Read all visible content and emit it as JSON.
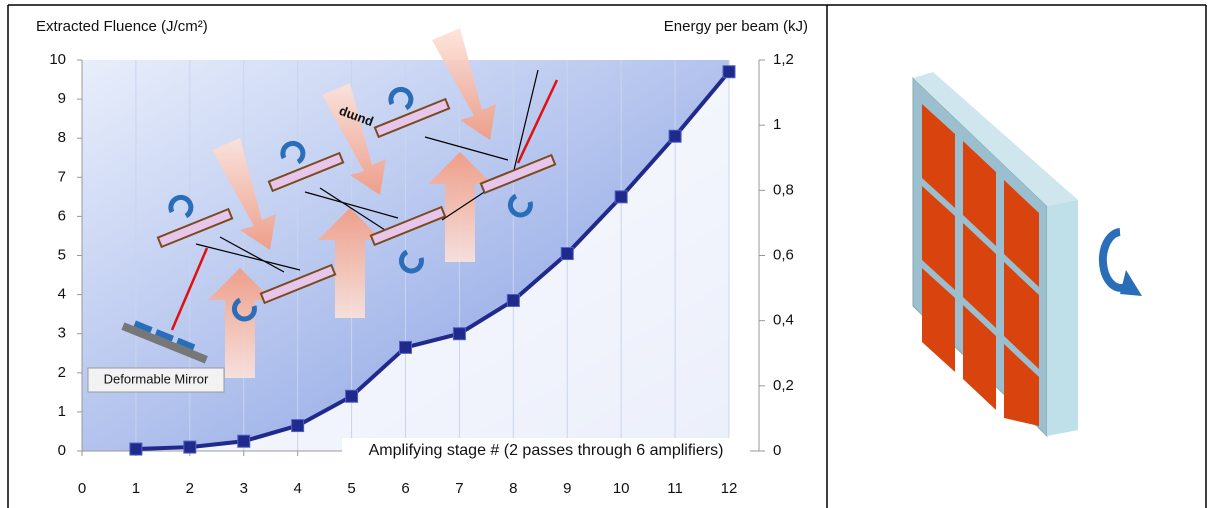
{
  "chart_data": {
    "type": "line",
    "ylabel": "Extracted Fluence (J/cm²)",
    "y2label": "Energy per beam (kJ)",
    "xlabel": "Amplifying stage # (2 passes through 6 amplifiers)",
    "annotations": [
      "Deformable Mirror",
      "pump"
    ],
    "x": [
      1,
      2,
      3,
      4,
      5,
      6,
      7,
      8,
      9,
      10,
      11,
      12
    ],
    "series": [
      {
        "color": "#1f2a8c",
        "values": [
          0.05,
          0.1,
          0.25,
          0.65,
          1.4,
          2.65,
          3.0,
          3.85,
          5.05,
          6.5,
          8.05,
          9.7
        ]
      }
    ],
    "xlim": [
      0,
      12
    ],
    "xticks": [
      0,
      1,
      2,
      3,
      4,
      5,
      6,
      7,
      8,
      9,
      10,
      11,
      12
    ],
    "ylim": [
      0,
      10
    ],
    "yticks": [
      0,
      1,
      2,
      3,
      4,
      5,
      6,
      7,
      8,
      9,
      10
    ],
    "y2lim": [
      0,
      1.2
    ],
    "y2ticks": [
      0,
      {
        "value": 0.2,
        "label": "0,2"
      },
      {
        "value": 0.4,
        "label": "0,4"
      },
      {
        "value": 0.6,
        "label": "0,6"
      },
      {
        "value": 0.8,
        "label": "0,8"
      },
      1,
      {
        "value": 1.2,
        "label": "1,2"
      }
    ],
    "grid": true
  }
}
